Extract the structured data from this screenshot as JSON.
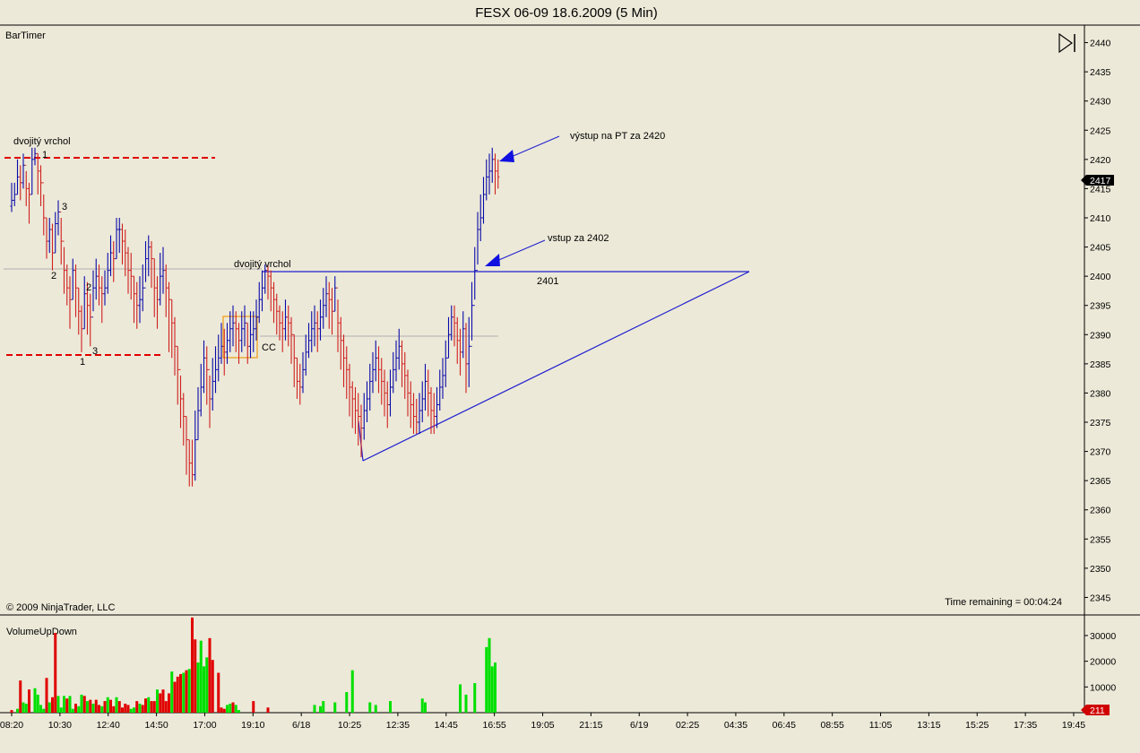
{
  "window": {
    "title": "FESX 06-09  18.6.2009 (5 Min)"
  },
  "panel_labels": {
    "bartimer": "BarTimer",
    "copyright": "© 2009 NinjaTrader, LLC",
    "time_remaining": "Time remaining = 00:04:24",
    "volume_indicator": "VolumeUpDown"
  },
  "colors": {
    "background": "#ECE9D8",
    "up_bar": "#0A0AAA",
    "down_bar": "#D02020",
    "trendline": "#2020D0",
    "resistance": "#E00000",
    "volume_up": "#00E000",
    "volume_down": "#E00000",
    "price_marker_bg": "#000000",
    "volume_marker_bg": "#D00000"
  },
  "chart_data": [
    {
      "type": "candlestick",
      "title": "FESX 06-09  18.6.2009 (5 Min)",
      "ylim": [
        2342,
        2443
      ],
      "yticks": [
        2440,
        2435,
        2430,
        2425,
        2420,
        2415,
        2410,
        2405,
        2400,
        2395,
        2390,
        2385,
        2380,
        2375,
        2370,
        2365,
        2360,
        2355,
        2350,
        2345
      ],
      "grid": false,
      "last_price": "2417",
      "x_labels": [
        "08:20",
        "10:30",
        "12:40",
        "14:50",
        "17:00",
        "19:10",
        "6/18",
        "10:25",
        "12:35",
        "14:45",
        "16:55",
        "19:05",
        "21:15",
        "6/19",
        "02:25",
        "04:35",
        "06:45",
        "08:55",
        "11:05",
        "13:15",
        "15:25",
        "17:35",
        "19:45"
      ],
      "x_range_bars": [
        0,
        240
      ],
      "close": [
        2413,
        2414,
        2417,
        2416,
        2419,
        2415,
        2414,
        2420,
        2421,
        2418,
        2416,
        2410,
        2406,
        2408,
        2404,
        2409,
        2411,
        2406,
        2401,
        2398,
        2396,
        2401,
        2398,
        2394,
        2391,
        2397,
        2395,
        2393,
        2398,
        2400,
        2398,
        2397,
        2398,
        2401,
        2404,
        2403,
        2408,
        2408,
        2406,
        2404,
        2401,
        2400,
        2397,
        2395,
        2396,
        2398,
        2403,
        2405,
        2403,
        2398,
        2396,
        2400,
        2401,
        2398,
        2396,
        2392,
        2388,
        2384,
        2379,
        2376,
        2372,
        2368,
        2366,
        2372,
        2377,
        2381,
        2386,
        2384,
        2379,
        2382,
        2384,
        2386,
        2388,
        2387,
        2389,
        2391,
        2392,
        2391,
        2389,
        2391,
        2392,
        2388,
        2390,
        2391,
        2393,
        2396,
        2398,
        2401,
        2400,
        2398,
        2396,
        2394,
        2392,
        2391,
        2393,
        2392,
        2390,
        2386,
        2382,
        2381,
        2384,
        2387,
        2389,
        2391,
        2392,
        2391,
        2393,
        2395,
        2397,
        2396,
        2394,
        2398,
        2392,
        2389,
        2386,
        2384,
        2381,
        2379,
        2377,
        2376,
        2374,
        2377,
        2379,
        2382,
        2384,
        2386,
        2384,
        2382,
        2380,
        2378,
        2381,
        2384,
        2386,
        2388,
        2385,
        2383,
        2380,
        2378,
        2376,
        2375,
        2377,
        2379,
        2382,
        2380,
        2377,
        2376,
        2378,
        2381,
        2383,
        2386,
        2390,
        2393,
        2392,
        2389,
        2387,
        2391,
        2385,
        2388,
        2395,
        2401,
        2408,
        2410,
        2414,
        2417,
        2418,
        2420,
        2418,
        2417
      ],
      "low": [
        2411,
        2412,
        2414,
        2413,
        2415,
        2412,
        2409,
        2414,
        2419,
        2414,
        2412,
        2407,
        2403,
        2404,
        2401,
        2404,
        2407,
        2402,
        2397,
        2395,
        2391,
        2396,
        2393,
        2390,
        2387,
        2391,
        2390,
        2388,
        2394,
        2396,
        2395,
        2392,
        2395,
        2397,
        2400,
        2399,
        2403,
        2404,
        2402,
        2400,
        2397,
        2396,
        2392,
        2391,
        2392,
        2394,
        2399,
        2400,
        2398,
        2393,
        2391,
        2395,
        2397,
        2393,
        2387,
        2386,
        2383,
        2378,
        2374,
        2371,
        2366,
        2364,
        2364,
        2365,
        2372,
        2376,
        2380,
        2378,
        2374,
        2377,
        2380,
        2382,
        2385,
        2383,
        2385,
        2387,
        2388,
        2387,
        2385,
        2387,
        2388,
        2385,
        2386,
        2387,
        2389,
        2392,
        2394,
        2397,
        2396,
        2394,
        2392,
        2390,
        2389,
        2387,
        2389,
        2388,
        2385,
        2381,
        2379,
        2378,
        2380,
        2383,
        2386,
        2387,
        2388,
        2387,
        2389,
        2391,
        2393,
        2391,
        2390,
        2394,
        2387,
        2384,
        2381,
        2379,
        2376,
        2374,
        2373,
        2371,
        2369,
        2372,
        2375,
        2377,
        2380,
        2382,
        2380,
        2378,
        2376,
        2374,
        2376,
        2380,
        2382,
        2384,
        2381,
        2379,
        2376,
        2374,
        2373,
        2373,
        2373,
        2375,
        2377,
        2376,
        2373,
        2373,
        2374,
        2377,
        2379,
        2381,
        2386,
        2389,
        2388,
        2385,
        2383,
        2386,
        2380,
        2381,
        2389,
        2396,
        2402,
        2406,
        2409,
        2413,
        2414,
        2416,
        2414,
        2415
      ],
      "high": [
        2416,
        2416,
        2420,
        2419,
        2421,
        2418,
        2416,
        2422,
        2422,
        2421,
        2419,
        2414,
        2410,
        2410,
        2409,
        2411,
        2413,
        2410,
        2405,
        2402,
        2400,
        2403,
        2402,
        2398,
        2395,
        2400,
        2399,
        2397,
        2401,
        2403,
        2402,
        2400,
        2401,
        2404,
        2407,
        2406,
        2410,
        2410,
        2409,
        2408,
        2405,
        2404,
        2400,
        2399,
        2400,
        2402,
        2406,
        2407,
        2406,
        2403,
        2400,
        2404,
        2405,
        2402,
        2399,
        2396,
        2393,
        2388,
        2383,
        2380,
        2376,
        2372,
        2372,
        2377,
        2381,
        2385,
        2389,
        2388,
        2383,
        2386,
        2388,
        2390,
        2392,
        2391,
        2392,
        2394,
        2395,
        2394,
        2392,
        2394,
        2395,
        2392,
        2394,
        2394,
        2396,
        2399,
        2401,
        2402,
        2402,
        2401,
        2399,
        2397,
        2395,
        2394,
        2396,
        2395,
        2393,
        2390,
        2386,
        2385,
        2387,
        2390,
        2392,
        2394,
        2395,
        2394,
        2396,
        2398,
        2400,
        2399,
        2398,
        2400,
        2396,
        2393,
        2390,
        2388,
        2385,
        2382,
        2381,
        2380,
        2378,
        2380,
        2382,
        2385,
        2387,
        2389,
        2388,
        2386,
        2384,
        2382,
        2384,
        2387,
        2389,
        2391,
        2389,
        2387,
        2384,
        2382,
        2380,
        2379,
        2380,
        2382,
        2385,
        2384,
        2381,
        2380,
        2381,
        2384,
        2386,
        2389,
        2393,
        2395,
        2395,
        2393,
        2391,
        2394,
        2392,
        2393,
        2399,
        2405,
        2411,
        2414,
        2417,
        2420,
        2421,
        2422,
        2421,
        2420
      ]
    },
    {
      "type": "bar",
      "title": "VolumeUpDown",
      "ylim": [
        0,
        38000
      ],
      "yticks": [
        30000,
        20000,
        10000
      ],
      "last_value": "211",
      "up": [
        0,
        0,
        1500,
        0,
        4000,
        3500,
        0,
        0,
        9500,
        7000,
        3000,
        1500,
        0,
        4000,
        0,
        0,
        6500,
        2000,
        6500,
        0,
        6500,
        1500,
        0,
        2500,
        7000,
        0,
        4500,
        0,
        3500,
        0,
        0,
        2500,
        0,
        6000,
        0,
        0,
        6000,
        0,
        0,
        0,
        0,
        1500,
        2000,
        0,
        3500,
        0,
        0,
        6000,
        0,
        0,
        9000,
        0,
        0,
        0,
        0,
        16000,
        0,
        0,
        0,
        15500,
        0,
        17000,
        0,
        0,
        19500,
        28000,
        18000,
        21500,
        0,
        0,
        0,
        0,
        1500,
        0,
        3000,
        3500,
        0,
        3000,
        1000,
        0,
        0,
        0,
        0,
        0,
        0,
        0,
        0,
        0,
        0,
        0,
        0,
        0,
        0,
        0,
        0,
        0,
        0,
        0,
        0,
        0,
        0,
        0,
        0,
        0,
        3000,
        0,
        2500,
        4500,
        0,
        0,
        0,
        4000,
        0,
        0,
        0,
        8000,
        0,
        16500,
        0,
        0,
        0,
        0,
        0,
        4000,
        0,
        3000,
        0,
        0,
        0,
        0,
        4500,
        0,
        0,
        0,
        0,
        0,
        0,
        0,
        0,
        0,
        0,
        5500,
        4000,
        0,
        0,
        0,
        0,
        0,
        0,
        0,
        0,
        0,
        0,
        0,
        11000,
        0,
        7000,
        0,
        0,
        11500,
        0,
        0,
        0,
        25500,
        29000,
        18000,
        19500,
        0,
        0
      ],
      "down": [
        1000,
        0,
        0,
        12500,
        0,
        0,
        9000,
        0,
        0,
        0,
        0,
        0,
        13500,
        0,
        6000,
        31000,
        0,
        0,
        0,
        5500,
        0,
        0,
        3500,
        0,
        0,
        6500,
        0,
        5000,
        0,
        5000,
        3000,
        0,
        4500,
        0,
        5000,
        2500,
        0,
        4500,
        2000,
        3500,
        3000,
        0,
        0,
        4500,
        0,
        3000,
        5500,
        0,
        4500,
        4500,
        0,
        7500,
        9000,
        4500,
        7500,
        0,
        12000,
        14000,
        15000,
        0,
        16500,
        0,
        37000,
        28500,
        0,
        0,
        0,
        0,
        29000,
        20500,
        0,
        15500,
        2000,
        1500,
        0,
        0,
        4000,
        0,
        0,
        0,
        0,
        0,
        0,
        4500,
        0,
        0,
        0,
        0,
        2000,
        0,
        0,
        0,
        0,
        0,
        0,
        0,
        0,
        0,
        0,
        0,
        0,
        0,
        0,
        0,
        0,
        0,
        0,
        0,
        0,
        0,
        0,
        0,
        0,
        0,
        0,
        0,
        0,
        0,
        0,
        0,
        0,
        0,
        0,
        0,
        0,
        0,
        0,
        0,
        0,
        0,
        0,
        0,
        0,
        0,
        0,
        0,
        0,
        0,
        0,
        0,
        0,
        0,
        0,
        0,
        0,
        0,
        0,
        0,
        0,
        0,
        0,
        0,
        0,
        0,
        0,
        0,
        0,
        0,
        0,
        0,
        0,
        0,
        0,
        0,
        0,
        0,
        0,
        0,
        0,
        0,
        0,
        0,
        0,
        0,
        0,
        0,
        0,
        0,
        0,
        0,
        0,
        0,
        0
      ]
    }
  ],
  "annotations": {
    "double_top_left": "dvojitý vrchol",
    "double_top_mid": "dvojitý vrchol",
    "swing_labels": [
      "1",
      "2",
      "3",
      "2",
      "3",
      "1"
    ],
    "cc_label": "CC",
    "level_2401": "2401",
    "entry": "vstup za 2402",
    "exit": "výstup na PT za 2420"
  }
}
